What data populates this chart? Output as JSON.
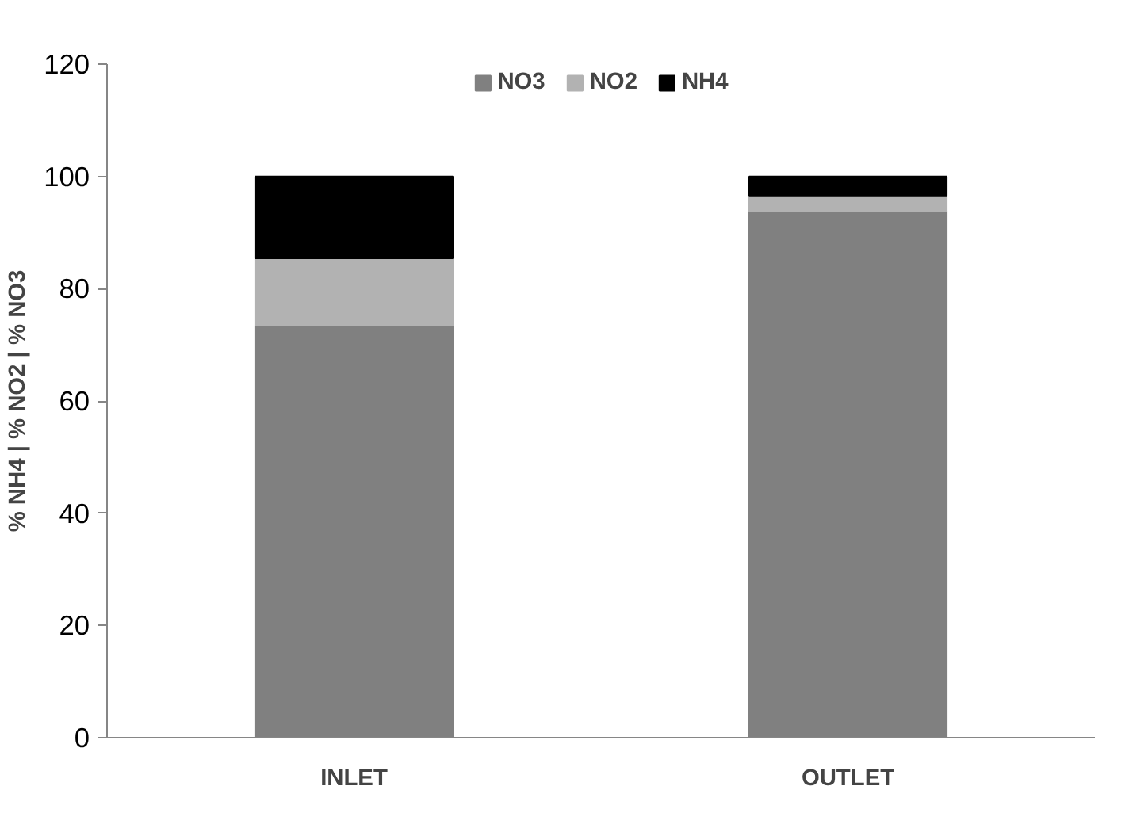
{
  "chart_data": {
    "type": "bar",
    "stacked": true,
    "ylabel": "% NH4 | % NO2 | % NO3",
    "categories": [
      "INLET",
      "OUTLET"
    ],
    "series": [
      {
        "name": "NO3",
        "color": "#808080",
        "values": [
          73.4,
          93.8
        ]
      },
      {
        "name": "NO2",
        "color": "#b2b2b2",
        "values": [
          12.0,
          2.8
        ]
      },
      {
        "name": "NH4",
        "color": "#000000",
        "values": [
          14.6,
          3.4
        ]
      }
    ],
    "ylim": [
      0,
      120
    ],
    "yticks": [
      0,
      20,
      40,
      60,
      80,
      100,
      120
    ],
    "grid": false,
    "legend": "top"
  }
}
